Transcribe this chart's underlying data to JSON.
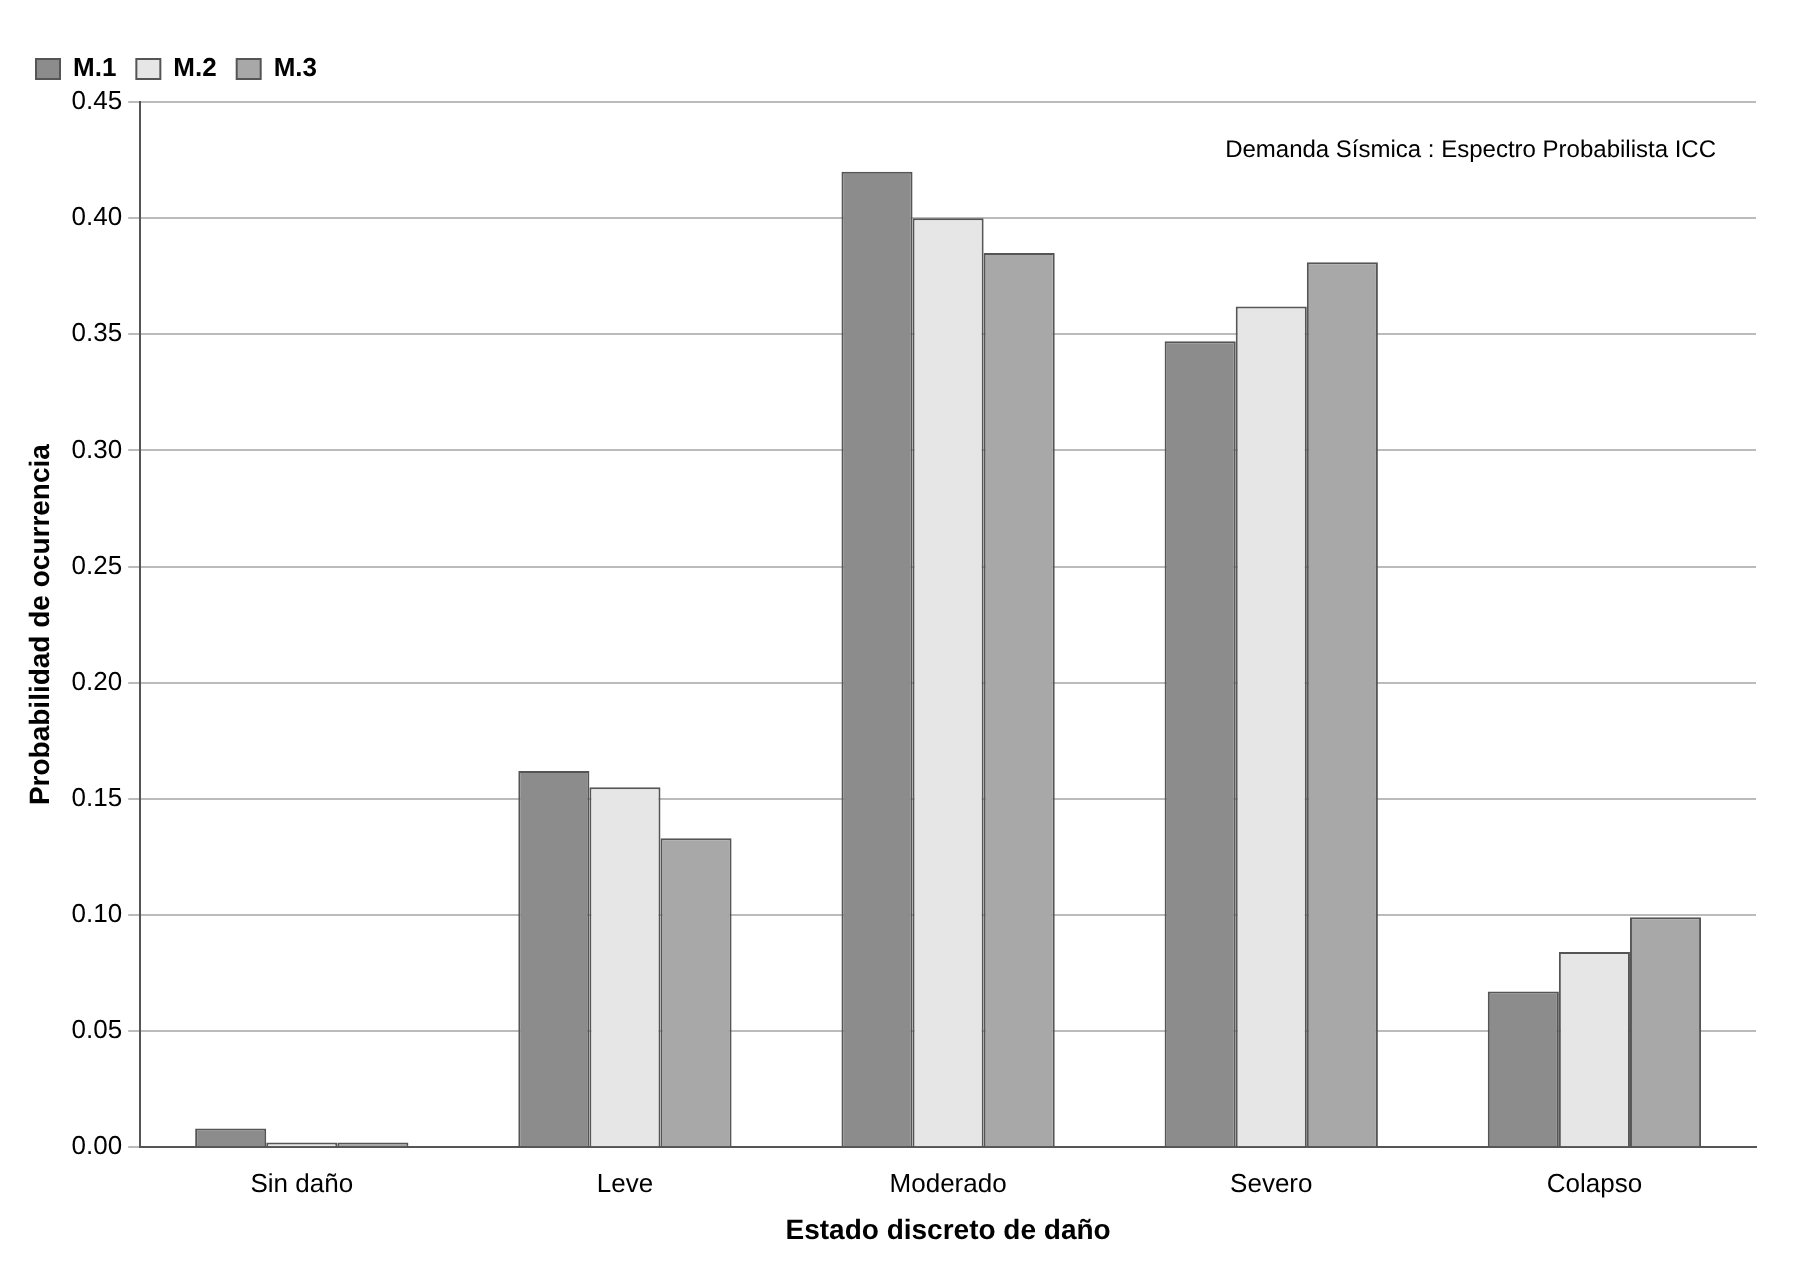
{
  "chart_data": {
    "type": "bar",
    "xlabel": "Estado discreto de daño",
    "ylabel": "Probabilidad de ocurrencia",
    "annotations": [
      "Demanda Sísmica : Espectro Probabilista ICC"
    ],
    "categories": [
      "Sin daño",
      "Leve",
      "Moderado",
      "Severo",
      "Colapso"
    ],
    "series": [
      {
        "name": "M.1",
        "color": "#8c8c8c",
        "values": [
          0.008,
          0.162,
          0.42,
          0.347,
          0.067
        ]
      },
      {
        "name": "M.2",
        "color": "#e6e6e6",
        "values": [
          0.002,
          0.155,
          0.4,
          0.362,
          0.084
        ]
      },
      {
        "name": "M.3",
        "color": "#a8a8a8",
        "values": [
          0.002,
          0.133,
          0.385,
          0.381,
          0.099
        ]
      }
    ],
    "ylim": [
      0,
      0.45
    ],
    "yticks": [
      {
        "value": 0,
        "label": "0.00"
      },
      {
        "value": 0.05,
        "label": "0.05"
      },
      {
        "value": 0.1,
        "label": "0.10"
      },
      {
        "value": 0.15,
        "label": "0.15"
      },
      {
        "value": 0.2,
        "label": "0.20"
      },
      {
        "value": 0.25,
        "label": "0.25"
      },
      {
        "value": 0.3,
        "label": "0.30"
      },
      {
        "value": 0.35,
        "label": "0.35"
      },
      {
        "value": 0.4,
        "label": "0.40"
      },
      {
        "value": 0.45,
        "label": "0.45"
      }
    ],
    "grid": "y",
    "legend": "top left"
  }
}
